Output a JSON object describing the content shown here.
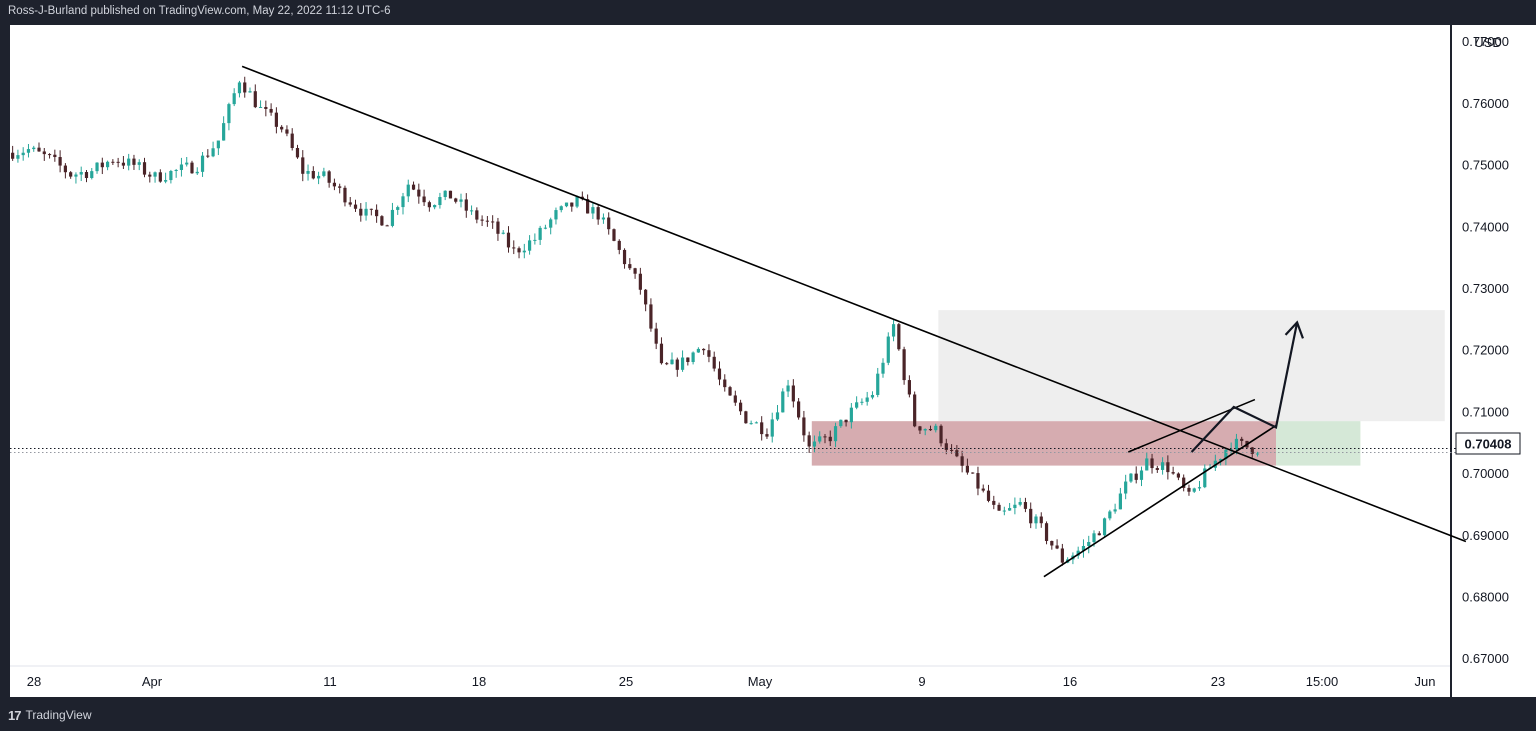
{
  "header": {
    "text": "Ross-J-Burland published on TradingView.com, May 22, 2022 11:12 UTC-6"
  },
  "footer": {
    "logo_mark": "17",
    "brand": "TradingView"
  },
  "price_axis": {
    "currency": "USD",
    "current_price_label": "0.70408"
  },
  "colors": {
    "up": "#26a69a",
    "down": "#4a2428",
    "resistance_zone": "#b5676f",
    "target_zone": "#b9d8bc",
    "upper_zone": "#d9d9d9",
    "lines": "#000000"
  },
  "chart_data": {
    "type": "candlestick",
    "title": "",
    "xlabel": "",
    "ylabel": "",
    "x_ticks": [
      "28",
      "Apr",
      "11",
      "18",
      "25",
      "May",
      "9",
      "16",
      "23",
      "15:00",
      "Jun"
    ],
    "y_ticks": [
      "0.77000",
      "0.76000",
      "0.75000",
      "0.74000",
      "0.73000",
      "0.72000",
      "0.71000",
      "0.70000",
      "0.69000",
      "0.68000",
      "0.67000"
    ],
    "ylim": [
      0.6638,
      0.7727
    ],
    "current_price": 0.70408,
    "price_path": [
      [
        "2022-03-25",
        0.752
      ],
      [
        "2022-03-26",
        0.7525
      ],
      [
        "2022-03-27",
        0.751
      ],
      [
        "2022-03-28",
        0.7485
      ],
      [
        "2022-03-29",
        0.749
      ],
      [
        "2022-03-30",
        0.751
      ],
      [
        "2022-03-31",
        0.75
      ],
      [
        "2022-04-01",
        0.748
      ],
      [
        "2022-04-02",
        0.749
      ],
      [
        "2022-04-03",
        0.75
      ],
      [
        "2022-04-04",
        0.754
      ],
      [
        "2022-04-05",
        0.764
      ],
      [
        "2022-04-06",
        0.759
      ],
      [
        "2022-04-07",
        0.756
      ],
      [
        "2022-04-08",
        0.749
      ],
      [
        "2022-04-09",
        0.748
      ],
      [
        "2022-04-10",
        0.745
      ],
      [
        "2022-04-11",
        0.742
      ],
      [
        "2022-04-12",
        0.741
      ],
      [
        "2022-04-13",
        0.747
      ],
      [
        "2022-04-14",
        0.744
      ],
      [
        "2022-04-15",
        0.745
      ],
      [
        "2022-04-16",
        0.742
      ],
      [
        "2022-04-17",
        0.74
      ],
      [
        "2022-04-18",
        0.736
      ],
      [
        "2022-04-19",
        0.738
      ],
      [
        "2022-04-20",
        0.742
      ],
      [
        "2022-04-21",
        0.744
      ],
      [
        "2022-04-22",
        0.742
      ],
      [
        "2022-04-23",
        0.736
      ],
      [
        "2022-04-24",
        0.73
      ],
      [
        "2022-04-25",
        0.717
      ],
      [
        "2022-04-26",
        0.718
      ],
      [
        "2022-04-27",
        0.721
      ],
      [
        "2022-04-28",
        0.713
      ],
      [
        "2022-04-29",
        0.709
      ],
      [
        "2022-04-30",
        0.707
      ],
      [
        "2022-05-01",
        0.715
      ],
      [
        "2022-05-02",
        0.704
      ],
      [
        "2022-05-03",
        0.706
      ],
      [
        "2022-05-04",
        0.71
      ],
      [
        "2022-05-05",
        0.713
      ],
      [
        "2022-05-06",
        0.724
      ],
      [
        "2022-05-07",
        0.708
      ],
      [
        "2022-05-08",
        0.707
      ],
      [
        "2022-05-09",
        0.702
      ],
      [
        "2022-05-10",
        0.698
      ],
      [
        "2022-05-11",
        0.693
      ],
      [
        "2022-05-12",
        0.695
      ],
      [
        "2022-05-13",
        0.691
      ],
      [
        "2022-05-14",
        0.686
      ],
      [
        "2022-05-15",
        0.688
      ],
      [
        "2022-05-16",
        0.692
      ],
      [
        "2022-05-17",
        0.698
      ],
      [
        "2022-05-18",
        0.702
      ],
      [
        "2022-05-19",
        0.701
      ],
      [
        "2022-05-20",
        0.696
      ],
      [
        "2022-05-21",
        0.701
      ],
      [
        "2022-05-22",
        0.705
      ],
      [
        "2022-05-23",
        0.7041
      ]
    ],
    "zones": [
      {
        "name": "resistance-zone",
        "from": "2022-05-02",
        "to": "2022-05-24",
        "top": 0.7085,
        "bottom": 0.7013
      },
      {
        "name": "upper-zone",
        "from": "2022-05-08",
        "to": "2022-06-01",
        "top": 0.7265,
        "bottom": 0.7085
      },
      {
        "name": "target-zone",
        "from": "2022-05-24",
        "to": "2022-05-28",
        "top": 0.7085,
        "bottom": 0.7013
      }
    ],
    "lines": [
      {
        "name": "major-downtrend-line",
        "from": [
          "2022-04-05",
          0.766
        ],
        "to": [
          "2022-06-02",
          0.689
        ]
      },
      {
        "name": "rising-support-line",
        "from": [
          "2022-05-13",
          0.6833
        ],
        "to": [
          "2022-05-24",
          0.7078
        ]
      },
      {
        "name": "upper-channel-line",
        "from": [
          "2022-05-17",
          0.7035
        ],
        "to": [
          "2022-05-23",
          0.712
        ]
      }
    ],
    "projection": [
      [
        "2022-05-20",
        0.7035
      ],
      [
        "2022-05-22",
        0.7108
      ],
      [
        "2022-05-24",
        0.7075
      ],
      [
        "2022-05-25",
        0.7245
      ]
    ]
  }
}
